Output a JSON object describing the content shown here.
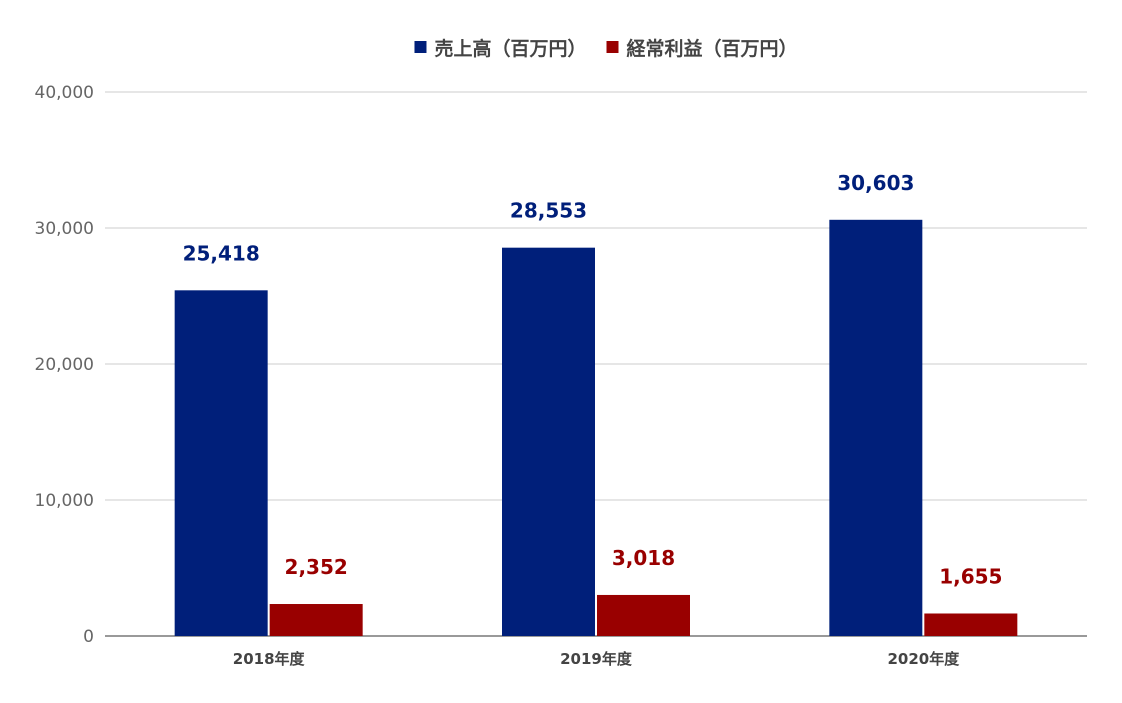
{
  "chart_data": {
    "type": "bar",
    "categories": [
      "2018年度",
      "2019年度",
      "2020年度"
    ],
    "series": [
      {
        "name": "売上高（百万円）",
        "values": [
          25418,
          28553,
          30603
        ],
        "labels": [
          "25,418",
          "28,553",
          "30,603"
        ],
        "color": "#001f7a"
      },
      {
        "name": "経常利益（百万円）",
        "values": [
          2352,
          3018,
          1655
        ],
        "labels": [
          "2,352",
          "3,018",
          "1,655"
        ],
        "color": "#990000"
      }
    ],
    "yticks": [
      0,
      10000,
      20000,
      30000,
      40000
    ],
    "ytick_labels": [
      "0",
      "10,000",
      "20,000",
      "30,000",
      "40,000"
    ],
    "ylim": [
      0,
      40000
    ],
    "grid": true,
    "legend_position": "top-center"
  }
}
